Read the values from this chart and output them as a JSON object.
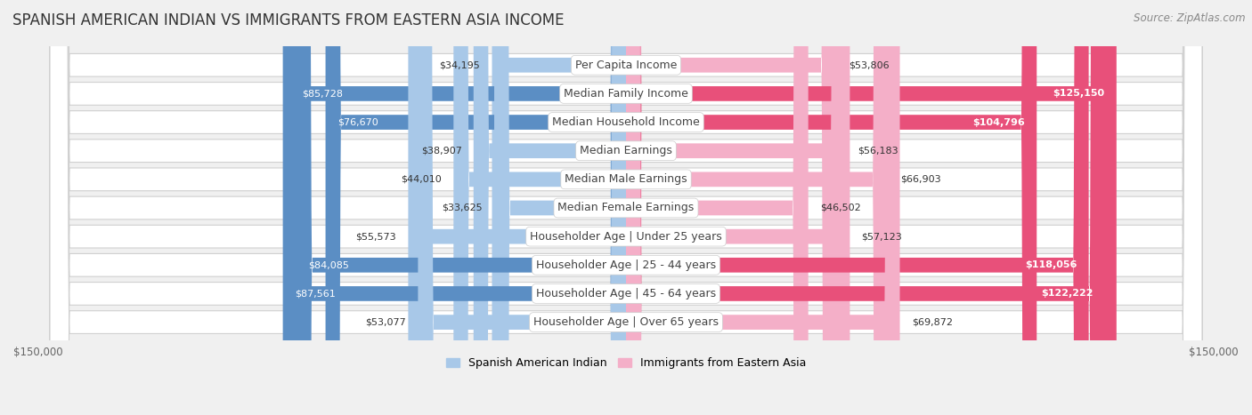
{
  "title": "SPANISH AMERICAN INDIAN VS IMMIGRANTS FROM EASTERN ASIA INCOME",
  "source": "Source: ZipAtlas.com",
  "categories": [
    "Per Capita Income",
    "Median Family Income",
    "Median Household Income",
    "Median Earnings",
    "Median Male Earnings",
    "Median Female Earnings",
    "Householder Age | Under 25 years",
    "Householder Age | 25 - 44 years",
    "Householder Age | 45 - 64 years",
    "Householder Age | Over 65 years"
  ],
  "spanish_values": [
    34195,
    85728,
    76670,
    38907,
    44010,
    33625,
    55573,
    84085,
    87561,
    53077
  ],
  "eastern_asia_values": [
    53806,
    125150,
    104796,
    56183,
    66903,
    46502,
    57123,
    118056,
    122222,
    69872
  ],
  "spanish_light_color": "#a8c8e8",
  "spanish_dark_color": "#5b8ec4",
  "eastern_light_color": "#f4afc8",
  "eastern_dark_color": "#e8507a",
  "axis_limit": 150000,
  "bg_color": "#f0f0f0",
  "row_color": "#ffffff",
  "row_alt_color": "#f7f7f7",
  "label_pill_color": "#ffffff",
  "label_text_color": "#444444",
  "value_text_dark": "#333333",
  "value_text_white": "#ffffff",
  "legend_label_1": "Spanish American Indian",
  "legend_label_2": "Immigrants from Eastern Asia",
  "title_fontsize": 12,
  "source_fontsize": 8.5,
  "bar_label_fontsize": 8,
  "category_fontsize": 9,
  "axis_label_fontsize": 8.5,
  "dark_threshold_sp": 60000,
  "dark_threshold_ea": 90000
}
